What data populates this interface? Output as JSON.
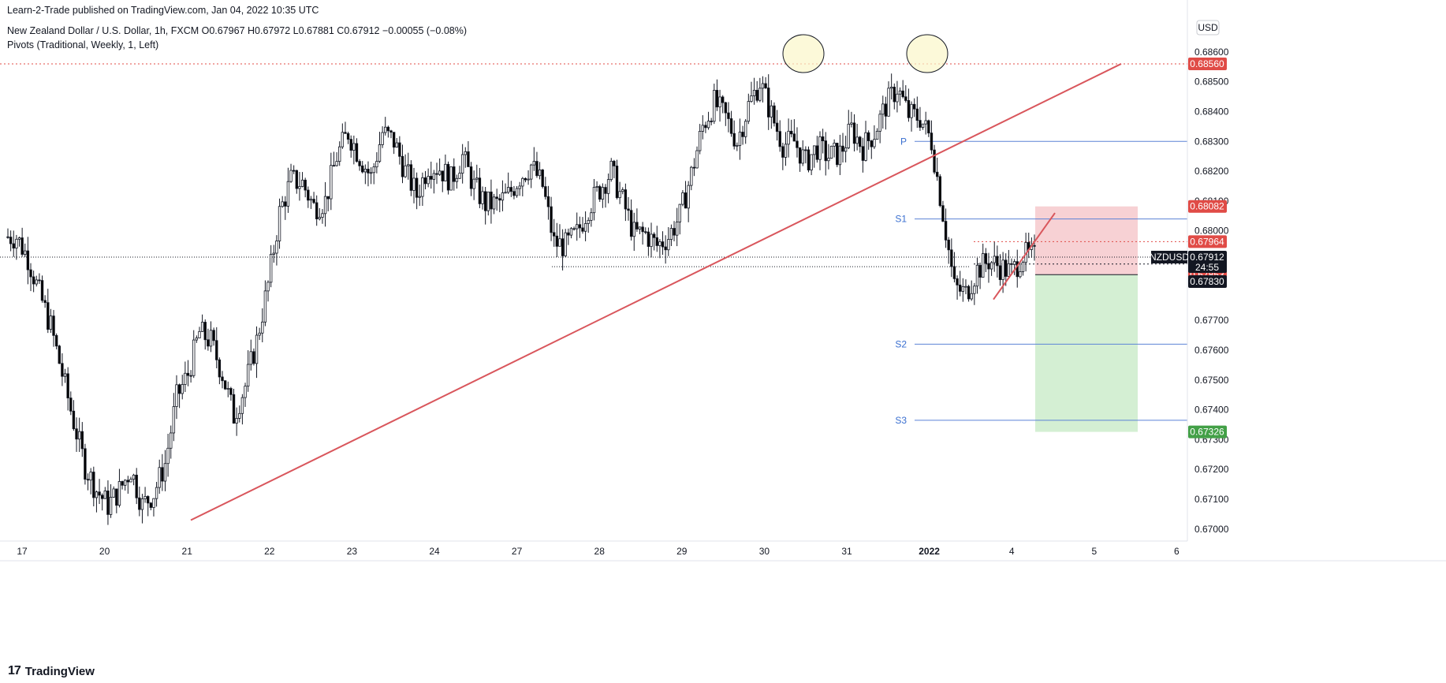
{
  "header": {
    "published": "Learn-2-Trade published on TradingView.com, Jan 04, 2022 10:35 UTC",
    "symbol_line": "New Zealand Dollar / U.S. Dollar, 1h, FXCM  O0.67967  H0.67972  L0.67881  C0.67912  −0.00055 (−0.08%)",
    "indicator_line": "Pivots (Traditional, Weekly, 1, Left)"
  },
  "footer": {
    "brand": "TradingView",
    "logo_glyph": "17"
  },
  "colors": {
    "up": "#ffffff",
    "down": "#000000",
    "trend": "#d9565c",
    "pivot": "#5b82d6",
    "stop_zone": "#f6c9cc",
    "target_zone": "#cdeccb",
    "red_badge": "#e04b46",
    "green_badge": "#43a047",
    "black_badge": "#131722"
  },
  "chart_data": {
    "type": "candlestick",
    "symbol": "NZDUSD",
    "timeframe": "1h",
    "currency": "USD",
    "x_labels": [
      "17",
      "20",
      "21",
      "22",
      "23",
      "24",
      "27",
      "28",
      "29",
      "30",
      "31",
      "2022",
      "4",
      "5",
      "6"
    ],
    "y_ticks": [
      "0.68600",
      "0.68500",
      "0.68400",
      "0.68300",
      "0.68200",
      "0.68100",
      "0.68000",
      "0.67700",
      "0.67600",
      "0.67500",
      "0.67400",
      "0.67300",
      "0.67200",
      "0.67100",
      "0.67000"
    ],
    "ylim": [
      0.6696,
      0.687
    ],
    "close_series": [
      0.6798,
      0.6791,
      0.6779,
      0.6768,
      0.6752,
      0.6736,
      0.6721,
      0.6713,
      0.6708,
      0.6713,
      0.672,
      0.6708,
      0.6712,
      0.6722,
      0.6744,
      0.6752,
      0.6766,
      0.6763,
      0.6752,
      0.6738,
      0.6748,
      0.6763,
      0.6782,
      0.6806,
      0.6817,
      0.6816,
      0.6808,
      0.681,
      0.6825,
      0.6833,
      0.6825,
      0.6818,
      0.6833,
      0.683,
      0.682,
      0.6812,
      0.6822,
      0.6821,
      0.6817,
      0.6825,
      0.6815,
      0.6809,
      0.6809,
      0.6812,
      0.6818,
      0.6822,
      0.6815,
      0.6796,
      0.6795,
      0.6799,
      0.6808,
      0.6814,
      0.682,
      0.681,
      0.6799,
      0.6799,
      0.6795,
      0.6798,
      0.6805,
      0.6819,
      0.6835,
      0.6843,
      0.6838,
      0.683,
      0.6842,
      0.685,
      0.6839,
      0.6829,
      0.683,
      0.6823,
      0.6828,
      0.6825,
      0.6826,
      0.6834,
      0.6828,
      0.6833,
      0.6842,
      0.6848,
      0.6839,
      0.6838,
      0.683,
      0.6806,
      0.6781,
      0.6779,
      0.6787,
      0.679,
      0.6788,
      0.6786,
      0.6792,
      0.6791
    ],
    "last_price": "0.67912",
    "countdown": "24:55",
    "price_badges": [
      {
        "value": 0.6856,
        "label": "0.68560",
        "style": "red"
      },
      {
        "value": 0.68082,
        "label": "0.68082",
        "style": "red"
      },
      {
        "value": 0.67964,
        "label": "0.67964",
        "style": "red"
      },
      {
        "value": 0.67889,
        "label": "0.67889",
        "style": "red"
      },
      {
        "value": 0.67853,
        "label": "0.67853",
        "style": "red"
      },
      {
        "value": 0.6783,
        "label": "0.67830",
        "style": "black"
      },
      {
        "value": 0.67326,
        "label": "0.67326",
        "style": "green"
      }
    ],
    "pivots": [
      {
        "name": "P",
        "value": 0.683
      },
      {
        "name": "S1",
        "value": 0.6804
      },
      {
        "name": "S2",
        "value": 0.6762
      },
      {
        "name": "S3",
        "value": 0.67365
      }
    ],
    "resistance_level": 0.6856,
    "support_level": 0.6788,
    "trend_line": {
      "from": {
        "day_index": 2,
        "price": 0.6703
      },
      "to": {
        "day_index": 13.5,
        "price": 0.6856
      }
    },
    "short_position": {
      "entry": 0.67853,
      "stop": 0.68082,
      "target": 0.67326
    },
    "annotations": [
      "double-top circles at 0.6856"
    ]
  }
}
